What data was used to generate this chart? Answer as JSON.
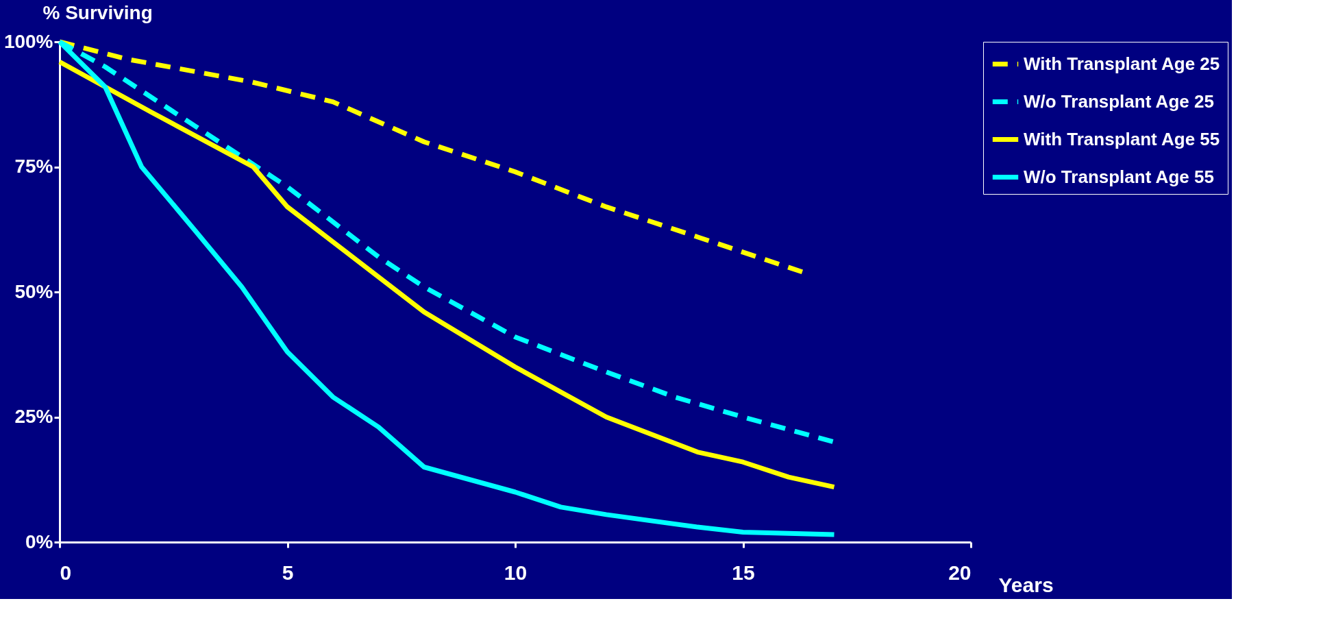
{
  "chart_data": {
    "type": "line",
    "xlabel": "Years",
    "ylabel": "% Surviving",
    "xlim": [
      0,
      20
    ],
    "xticks": [
      0,
      5,
      10,
      15,
      20
    ],
    "ylim": [
      0,
      100
    ],
    "yticks": [
      {
        "value": 0,
        "label": "0%"
      },
      {
        "value": 25,
        "label": "25%"
      },
      {
        "value": 50,
        "label": "50%"
      },
      {
        "value": 75,
        "label": "75%"
      },
      {
        "value": 100,
        "label": "100%"
      }
    ],
    "grid": false,
    "legend": "right",
    "marker": "none",
    "series": [
      {
        "name": "With Transplant Age 25",
        "color": "#ffff00",
        "line_style": "dashed",
        "x": [
          0,
          1.5,
          4.2,
          6,
          8,
          10,
          12,
          14,
          16.3
        ],
        "values": [
          100,
          96.5,
          92,
          88,
          80,
          74,
          67,
          61,
          54
        ]
      },
      {
        "name": "W/o Transplant Age 25",
        "color": "#00ffff",
        "line_style": "dashed",
        "x": [
          0,
          1,
          3,
          5,
          7,
          8,
          10,
          12,
          13.5,
          15,
          17
        ],
        "values": [
          100,
          95,
          83,
          71,
          57,
          51,
          41,
          34,
          29,
          25,
          20
        ]
      },
      {
        "name": "With Transplant Age 55",
        "color": "#ffff00",
        "line_style": "solid",
        "x": [
          0,
          2,
          4.25,
          5,
          6,
          8,
          10,
          12,
          14,
          15,
          16,
          17
        ],
        "values": [
          96,
          86,
          75,
          67,
          60,
          46,
          35,
          25,
          18,
          16,
          13,
          11
        ]
      },
      {
        "name": "W/o Transplant Age 55",
        "color": "#00ffff",
        "line_style": "solid",
        "x": [
          0,
          1,
          1.8,
          3,
          4,
          5,
          6,
          7,
          8,
          10,
          11,
          12,
          14,
          15,
          17
        ],
        "values": [
          100,
          91,
          75,
          62,
          51,
          38,
          29,
          23,
          15,
          10,
          7,
          5.5,
          3,
          2,
          1.5
        ]
      }
    ]
  }
}
